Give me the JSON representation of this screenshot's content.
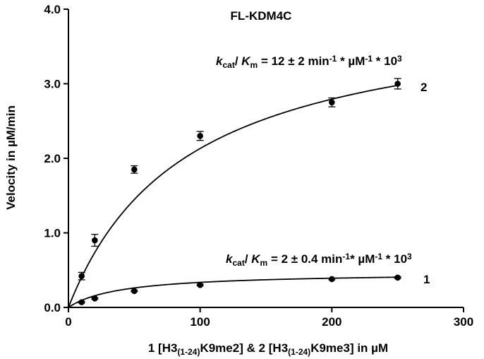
{
  "chart_data": {
    "type": "scatter",
    "title": "FL-KDM4C",
    "xlabel": "1 [H3(1-24)K9me2] & 2 [H3(1-24)K9me3] in µM",
    "ylabel": "Velocity in µM/min",
    "xlim": [
      0,
      300
    ],
    "ylim": [
      0,
      4.0
    ],
    "x_ticks": [
      0,
      100,
      200,
      300
    ],
    "x_tick_labels": [
      "0",
      "100",
      "200",
      "300"
    ],
    "y_ticks": [
      0,
      1,
      2,
      3,
      4
    ],
    "y_tick_labels": [
      "0.0",
      "1.0",
      "2.0",
      "3.0",
      "4.0"
    ],
    "grid": false,
    "series": [
      {
        "label": "2",
        "x": [
          10,
          20,
          50,
          100,
          200,
          250
        ],
        "y": [
          0.42,
          0.9,
          1.85,
          2.3,
          2.75,
          3.0
        ],
        "err": [
          0.05,
          0.08,
          0.05,
          0.06,
          0.06,
          0.07
        ],
        "fit": {
          "model": "michaelis-menten",
          "vmax": 4.05,
          "km": 90
        },
        "annotation": {
          "k": "k",
          "cat": "cat",
          "slash": "/ ",
          "K": "K",
          "m": "m",
          "eq": " = 12 ± 2 min",
          "exp1": "-1",
          "mid": " * µM",
          "exp2": "-1",
          "tail": " * 10",
          "exp3": "3"
        }
      },
      {
        "label": "1",
        "x": [
          10,
          20,
          50,
          100,
          200,
          250
        ],
        "y": [
          0.07,
          0.12,
          0.22,
          0.3,
          0.38,
          0.4
        ],
        "err": [
          0.01,
          0.01,
          0.01,
          0.01,
          0.01,
          0.01
        ],
        "fit": {
          "model": "michaelis-menten",
          "vmax": 0.47,
          "km": 40
        },
        "annotation": {
          "k": "k",
          "cat": "cat",
          "slash": "/ ",
          "K": "K",
          "m": "m",
          "eq": " = 2 ± 0.4 min",
          "exp1": "-1",
          "mid": "* µM",
          "exp2": "-1",
          "tail": " * 10",
          "exp3": "3"
        }
      }
    ]
  }
}
